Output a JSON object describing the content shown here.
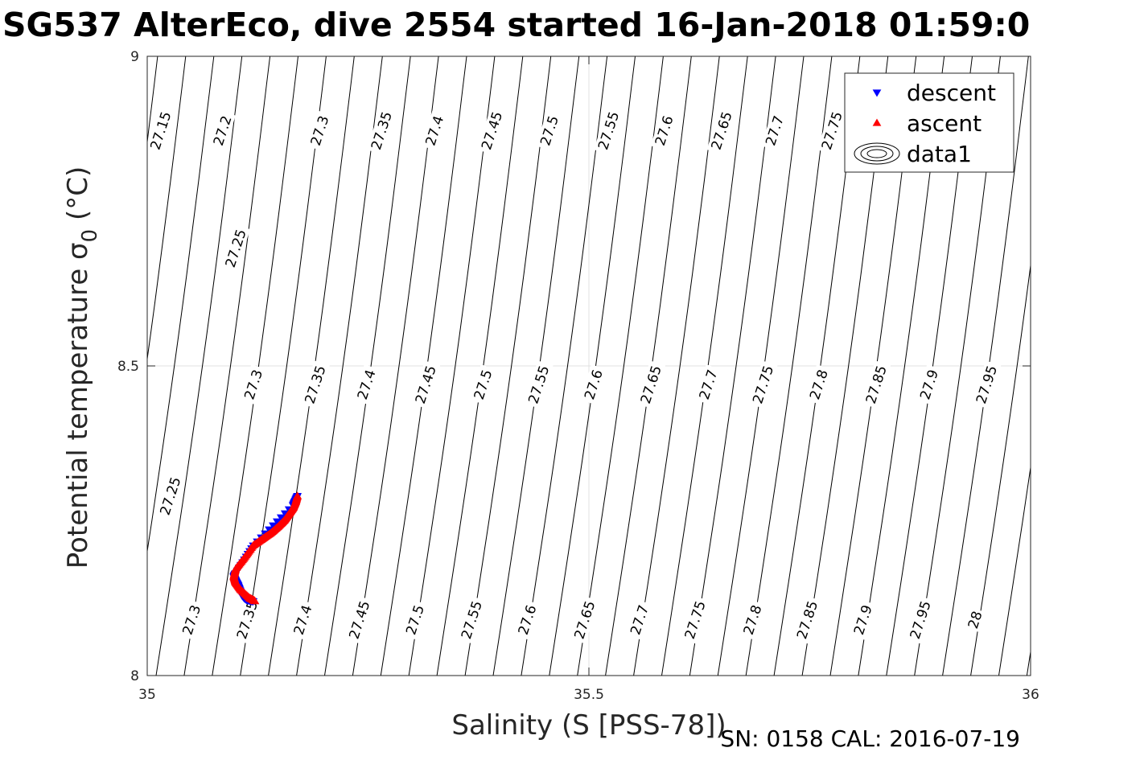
{
  "chart_data": {
    "type": "scatter",
    "title": "SG537 AlterEco, dive 2554 started 16-Jan-2018 01:59:0",
    "xlabel": "Salinity (S [PSS-78])",
    "ylabel": "Potential temperature",
    "ylabel_symbol": "σ",
    "ylabel_subscript": "0",
    "ylabel_unit": "(°C)",
    "xlim": [
      35,
      36
    ],
    "ylim": [
      8,
      9
    ],
    "xticks": [
      "35",
      "35.5",
      "36"
    ],
    "xtick_values": [
      35,
      35.5,
      36
    ],
    "yticks": [
      "8",
      "8.5",
      "9"
    ],
    "ytick_values": [
      8,
      8.5,
      9
    ],
    "grid": true,
    "legend_position": "top-right",
    "legend": [
      {
        "label": "descent",
        "marker": "triangle-down",
        "color": "#0000ff"
      },
      {
        "label": "ascent",
        "marker": "triangle-up",
        "color": "#ff0000"
      },
      {
        "label": "data1",
        "marker": "contour",
        "color": "#000000"
      }
    ],
    "contours": {
      "levels": [
        "27.15",
        "27.2",
        "27.25",
        "27.3",
        "27.35",
        "27.4",
        "27.45",
        "27.5",
        "27.55",
        "27.6",
        "27.65",
        "27.7",
        "27.75",
        "27.8",
        "27.85",
        "27.9",
        "27.95",
        "28"
      ],
      "label_rows": [
        {
          "y": 8.88,
          "labels": [
            {
              "x": 35.015,
              "text": "27.15"
            },
            {
              "x": 35.085,
              "text": "27.2"
            },
            {
              "x": 35.195,
              "text": "27.3"
            },
            {
              "x": 35.265,
              "text": "27.35"
            },
            {
              "x": 35.325,
              "text": "27.4"
            },
            {
              "x": 35.39,
              "text": "27.45"
            },
            {
              "x": 35.455,
              "text": "27.5"
            },
            {
              "x": 35.522,
              "text": "27.55"
            },
            {
              "x": 35.585,
              "text": "27.6"
            },
            {
              "x": 35.65,
              "text": "27.65"
            },
            {
              "x": 35.71,
              "text": "27.7"
            },
            {
              "x": 35.775,
              "text": "27.75"
            }
          ]
        },
        {
          "y": 8.69,
          "labels": [
            {
              "x": 35.1,
              "text": "27.25"
            }
          ]
        },
        {
          "y": 8.47,
          "labels": [
            {
              "x": 35.12,
              "text": "27.3"
            },
            {
              "x": 35.19,
              "text": "27.35"
            },
            {
              "x": 35.248,
              "text": "27.4"
            },
            {
              "x": 35.315,
              "text": "27.45"
            },
            {
              "x": 35.38,
              "text": "27.5"
            },
            {
              "x": 35.443,
              "text": "27.55"
            },
            {
              "x": 35.505,
              "text": "27.6"
            },
            {
              "x": 35.57,
              "text": "27.65"
            },
            {
              "x": 35.635,
              "text": "27.7"
            },
            {
              "x": 35.697,
              "text": "27.75"
            },
            {
              "x": 35.76,
              "text": "27.8"
            },
            {
              "x": 35.825,
              "text": "27.85"
            },
            {
              "x": 35.885,
              "text": "27.9"
            },
            {
              "x": 35.95,
              "text": "27.95"
            }
          ]
        },
        {
          "y": 8.29,
          "labels": [
            {
              "x": 35.026,
              "text": "27.25"
            }
          ]
        },
        {
          "y": 8.09,
          "labels": [
            {
              "x": 35.05,
              "text": "27.3"
            },
            {
              "x": 35.113,
              "text": "27.35"
            },
            {
              "x": 35.176,
              "text": "27.4"
            },
            {
              "x": 35.24,
              "text": "27.45"
            },
            {
              "x": 35.303,
              "text": "27.5"
            },
            {
              "x": 35.367,
              "text": "27.55"
            },
            {
              "x": 35.43,
              "text": "27.6"
            },
            {
              "x": 35.495,
              "text": "27.65"
            },
            {
              "x": 35.557,
              "text": "27.7"
            },
            {
              "x": 35.62,
              "text": "27.75"
            },
            {
              "x": 35.685,
              "text": "27.8"
            },
            {
              "x": 35.747,
              "text": "27.85"
            },
            {
              "x": 35.81,
              "text": "27.9"
            },
            {
              "x": 35.875,
              "text": "27.95"
            },
            {
              "x": 35.937,
              "text": "28"
            }
          ]
        }
      ]
    },
    "series": [
      {
        "name": "descent",
        "marker": "triangle-down",
        "color": "#0000ff",
        "x": [
          35.17,
          35.165,
          35.12,
          35.1,
          35.098,
          35.1,
          35.103,
          35.107,
          35.11,
          35.113,
          35.12
        ],
        "y": [
          8.29,
          8.275,
          8.21,
          8.165,
          8.16,
          8.153,
          8.145,
          8.13,
          8.125,
          8.122,
          8.12
        ]
      },
      {
        "name": "ascent",
        "marker": "triangle-up",
        "color": "#ff0000",
        "x": [
          35.17,
          35.168,
          35.165,
          35.16,
          35.155,
          35.148,
          35.14,
          35.13,
          35.12,
          35.11,
          35.1,
          35.098,
          35.1,
          35.106,
          35.116,
          35.12,
          35.122
        ],
        "y": [
          8.29,
          8.28,
          8.27,
          8.26,
          8.25,
          8.24,
          8.23,
          8.22,
          8.21,
          8.19,
          8.172,
          8.16,
          8.15,
          8.138,
          8.125,
          8.122,
          8.12
        ]
      }
    ]
  },
  "footer_text": "SN: 0158  CAL: 2016-07-19"
}
